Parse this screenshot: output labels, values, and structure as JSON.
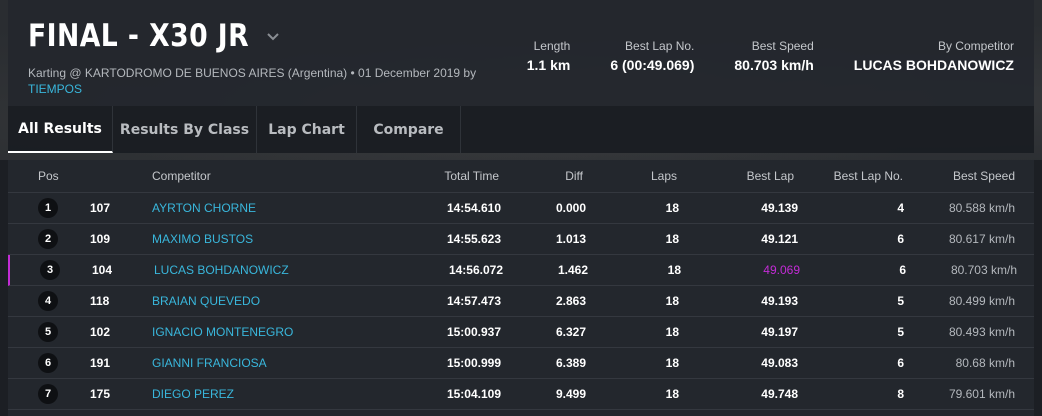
{
  "header": {
    "title": "FINAL - X30 JR",
    "subtitle": "Karting @ KARTODROMO DE BUENOS AIRES (Argentina) • 01 December 2019 by",
    "by_link": "TIEMPOS",
    "stats": [
      {
        "label": "Length",
        "value": "1.1 km"
      },
      {
        "label": "Best Lap No.",
        "value": "6 (00:49.069)"
      },
      {
        "label": "Best Speed",
        "value": "80.703 km/h"
      },
      {
        "label": "By Competitor",
        "value": "LUCAS BOHDANOWICZ"
      }
    ]
  },
  "tabs": [
    {
      "label": "All Results",
      "active": true
    },
    {
      "label": "Results By Class",
      "active": false
    },
    {
      "label": "Lap Chart",
      "active": false
    },
    {
      "label": "Compare",
      "active": false
    }
  ],
  "table": {
    "columns": {
      "pos": "Pos",
      "competitor": "Competitor",
      "total_time": "Total Time",
      "diff": "Diff",
      "laps": "Laps",
      "best_lap": "Best Lap",
      "best_lap_no": "Best Lap No.",
      "best_speed": "Best Speed"
    },
    "rows": [
      {
        "pos": "1",
        "num": "107",
        "competitor": "AYRTON CHORNE",
        "total_time": "14:54.610",
        "diff": "0.000",
        "laps": "18",
        "best_lap": "49.139",
        "best_lap_no": "4",
        "best_speed": "80.588 km/h"
      },
      {
        "pos": "2",
        "num": "109",
        "competitor": "MAXIMO BUSTOS",
        "total_time": "14:55.623",
        "diff": "1.013",
        "laps": "18",
        "best_lap": "49.121",
        "best_lap_no": "6",
        "best_speed": "80.617 km/h"
      },
      {
        "pos": "3",
        "num": "104",
        "competitor": "LUCAS BOHDANOWICZ",
        "total_time": "14:56.072",
        "diff": "1.462",
        "laps": "18",
        "best_lap": "49.069",
        "best_lap_no": "6",
        "best_speed": "80.703 km/h"
      },
      {
        "pos": "4",
        "num": "118",
        "competitor": "BRAIAN QUEVEDO",
        "total_time": "14:57.473",
        "diff": "2.863",
        "laps": "18",
        "best_lap": "49.193",
        "best_lap_no": "5",
        "best_speed": "80.499 km/h"
      },
      {
        "pos": "5",
        "num": "102",
        "competitor": "IGNACIO MONTENEGRO",
        "total_time": "15:00.937",
        "diff": "6.327",
        "laps": "18",
        "best_lap": "49.197",
        "best_lap_no": "5",
        "best_speed": "80.493 km/h"
      },
      {
        "pos": "6",
        "num": "191",
        "competitor": "GIANNI FRANCIOSA",
        "total_time": "15:00.999",
        "diff": "6.389",
        "laps": "18",
        "best_lap": "49.083",
        "best_lap_no": "6",
        "best_speed": "80.68 km/h"
      },
      {
        "pos": "7",
        "num": "175",
        "competitor": "DIEGO PEREZ",
        "total_time": "15:04.109",
        "diff": "9.499",
        "laps": "18",
        "best_lap": "49.748",
        "best_lap_no": "8",
        "best_speed": "79.601 km/h"
      }
    ]
  },
  "colors": {
    "link": "#39b7dc",
    "best_lap_highlight": "#c32cd6",
    "background": "#1c1f24"
  }
}
